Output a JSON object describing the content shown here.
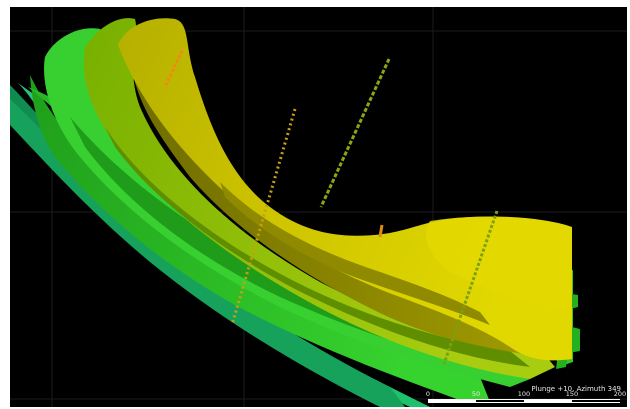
{
  "view": {
    "orientation_label": "Plunge +10, Azimuth 349"
  },
  "scale_bar": {
    "ticks": [
      "0",
      "50",
      "100",
      "150",
      "200"
    ]
  },
  "colors": {
    "background": "#000000",
    "grid": "#1d1d1d",
    "surface_yellow": "#d9d000",
    "surface_yellow_green": "#9fce1c",
    "surface_green": "#2ec62a",
    "surface_teal": "#19b26a",
    "drillhole_high": "#f08a10",
    "drillhole_low": "#8a9a10"
  },
  "icons": [
    "scale-bar-icon"
  ]
}
